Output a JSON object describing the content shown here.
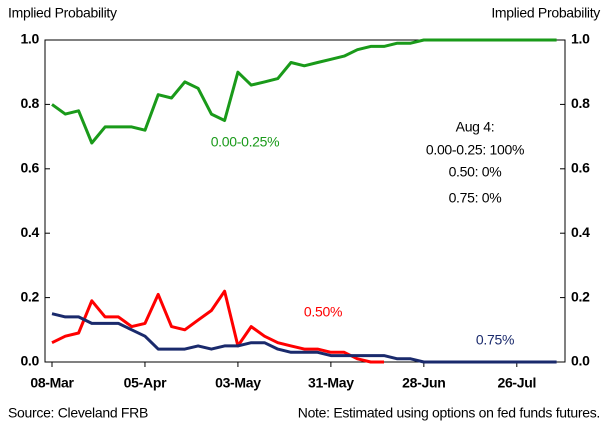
{
  "chart_data": {
    "type": "line",
    "y_label": "Implied Probability",
    "y2_label": "Implied Probability",
    "annotations": [
      "Aug 4:",
      "0.00-0.25: 100%",
      "0.50: 0%",
      "0.75: 0%"
    ],
    "source": "Source: Cleveland FRB",
    "note": "Note: Estimated using options on fed funds futures.",
    "categories": [
      "08-Mar",
      null,
      null,
      null,
      null,
      null,
      null,
      "05-Apr",
      null,
      null,
      null,
      null,
      null,
      null,
      "03-May",
      null,
      null,
      null,
      null,
      null,
      null,
      "31-May",
      null,
      null,
      null,
      null,
      null,
      null,
      "28-Jun",
      null,
      null,
      null,
      null,
      null,
      null,
      "26-Jul",
      null,
      null,
      null
    ],
    "series": [
      {
        "name": "0.00-0.25%",
        "color": "#1a9a1a",
        "values": [
          0.8,
          0.77,
          0.78,
          0.68,
          0.73,
          0.73,
          0.73,
          0.72,
          0.83,
          0.82,
          0.87,
          0.85,
          0.77,
          0.75,
          0.9,
          0.86,
          0.87,
          0.88,
          0.93,
          0.92,
          0.93,
          0.94,
          0.95,
          0.97,
          0.98,
          0.98,
          0.99,
          0.99,
          1.0,
          1.0,
          1.0,
          1.0,
          1.0,
          1.0,
          1.0,
          1.0,
          1.0,
          1.0,
          1.0
        ]
      },
      {
        "name": "0.50%",
        "color": "#ff0000",
        "values": [
          0.06,
          0.08,
          0.09,
          0.19,
          0.14,
          0.14,
          0.11,
          0.12,
          0.21,
          0.11,
          0.1,
          0.13,
          0.16,
          0.22,
          0.05,
          0.11,
          0.08,
          0.06,
          0.05,
          0.04,
          0.04,
          0.03,
          0.03,
          0.01,
          0,
          0,
          null,
          null,
          null,
          null,
          null,
          null,
          null,
          null,
          null,
          null,
          null,
          null,
          null
        ]
      },
      {
        "name": "0.75%",
        "color": "#1a2a6c",
        "values": [
          0.15,
          0.14,
          0.14,
          0.12,
          0.12,
          0.12,
          0.1,
          0.08,
          0.04,
          0.04,
          0.04,
          0.05,
          0.04,
          0.05,
          0.05,
          0.06,
          0.06,
          0.04,
          0.03,
          0.03,
          0.03,
          0.02,
          0.02,
          0.02,
          0.02,
          0.02,
          0.01,
          0.01,
          0,
          0,
          0,
          0,
          0,
          0,
          0,
          0,
          0,
          0,
          0
        ]
      }
    ],
    "ylim": [
      0,
      1
    ],
    "yticks": [
      {
        "value": 0,
        "label": "0.0"
      },
      0.2,
      0.4,
      0.6,
      0.8,
      {
        "value": 1,
        "label": "1.0"
      }
    ],
    "y2lim": [
      0,
      1
    ],
    "y2ticks": [
      {
        "value": 0,
        "label": "0.0"
      },
      0.2,
      0.4,
      0.6,
      0.8,
      {
        "value": 1,
        "label": "1.0"
      }
    ],
    "grid": false
  }
}
